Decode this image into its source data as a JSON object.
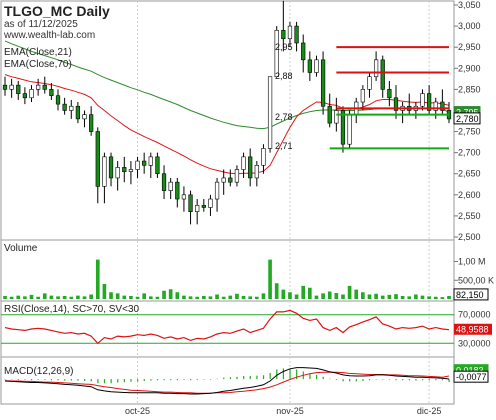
{
  "header": {
    "title": "TLGO_MC Daily",
    "asof": "as of 11/12/2025",
    "site": "www.wealth-lab.com"
  },
  "colors": {
    "background": "#ffffff",
    "bull": "#ffffff",
    "bear": "#1a8a1a",
    "ema21": "#e01818",
    "ema70": "#2e8b2e",
    "hline_red": "#dd1111",
    "hline_green": "#11aa11",
    "volume": "#22aa22",
    "rsi": "#dd1111",
    "macd": "#000000",
    "macd_signal": "#dd1111",
    "macd_hist": "#22aa22",
    "grid": "#cfcfcf",
    "axis_text": "#333333"
  },
  "chart_data": [
    {
      "type": "candlestick",
      "panel": "price",
      "legend": [
        "EMA(Close,21)",
        "EMA(Close,70)"
      ],
      "ylim": [
        2500,
        3050
      ],
      "yticks": [
        "3,050",
        "3,000",
        "2,950",
        "2,900",
        "2,850",
        "2,800",
        "2,750",
        "2,700",
        "2,650",
        "2,600",
        "2,550",
        "2,500"
      ],
      "ytick_values": [
        3050,
        3000,
        2950,
        2900,
        2850,
        2800,
        2750,
        2700,
        2650,
        2600,
        2550,
        2500
      ],
      "xticks": [
        {
          "label": "oct-25",
          "index": 20
        },
        {
          "label": "nov-25",
          "index": 43
        },
        {
          "label": "dic-25",
          "index": 64
        }
      ],
      "last_values": [
        {
          "label": "2,795",
          "color": "#2e8b2e",
          "value": 2795
        },
        {
          "label": "2,780",
          "color": "#ffffff",
          "value": 2780
        }
      ],
      "ohlc": [
        [
          2860,
          2880,
          2835,
          2850
        ],
        [
          2850,
          2875,
          2830,
          2860
        ],
        [
          2860,
          2870,
          2825,
          2840
        ],
        [
          2840,
          2855,
          2815,
          2830
        ],
        [
          2830,
          2860,
          2820,
          2850
        ],
        [
          2850,
          2875,
          2835,
          2860
        ],
        [
          2860,
          2880,
          2840,
          2850
        ],
        [
          2850,
          2865,
          2825,
          2835
        ],
        [
          2835,
          2850,
          2800,
          2815
        ],
        [
          2815,
          2830,
          2790,
          2800
        ],
        [
          2800,
          2825,
          2780,
          2810
        ],
        [
          2810,
          2820,
          2770,
          2780
        ],
        [
          2780,
          2800,
          2760,
          2790
        ],
        [
          2790,
          2810,
          2740,
          2750
        ],
        [
          2750,
          2760,
          2580,
          2620
        ],
        [
          2620,
          2700,
          2580,
          2690
        ],
        [
          2690,
          2700,
          2620,
          2640
        ],
        [
          2640,
          2680,
          2610,
          2665
        ],
        [
          2665,
          2690,
          2630,
          2655
        ],
        [
          2655,
          2680,
          2625,
          2660
        ],
        [
          2660,
          2690,
          2640,
          2680
        ],
        [
          2680,
          2700,
          2650,
          2670
        ],
        [
          2670,
          2700,
          2640,
          2690
        ],
        [
          2690,
          2700,
          2640,
          2650
        ],
        [
          2650,
          2670,
          2590,
          2610
        ],
        [
          2610,
          2640,
          2590,
          2630
        ],
        [
          2630,
          2640,
          2570,
          2590
        ],
        [
          2590,
          2620,
          2560,
          2600
        ],
        [
          2600,
          2610,
          2530,
          2560
        ],
        [
          2560,
          2590,
          2530,
          2575
        ],
        [
          2575,
          2590,
          2560,
          2570
        ],
        [
          2570,
          2600,
          2550,
          2590
        ],
        [
          2590,
          2640,
          2560,
          2630
        ],
        [
          2630,
          2660,
          2600,
          2640
        ],
        [
          2640,
          2660,
          2620,
          2630
        ],
        [
          2630,
          2670,
          2620,
          2660
        ],
        [
          2660,
          2700,
          2640,
          2690
        ],
        [
          2690,
          2710,
          2620,
          2640
        ],
        [
          2640,
          2680,
          2620,
          2670
        ],
        [
          2670,
          2720,
          2650,
          2710
        ],
        [
          2710,
          2880,
          2700,
          2880
        ],
        [
          2880,
          3000,
          2880,
          2990
        ],
        [
          2990,
          3060,
          2940,
          2970
        ],
        [
          2970,
          3010,
          2950,
          3000
        ],
        [
          3000,
          3010,
          2940,
          2960
        ],
        [
          2960,
          2980,
          2890,
          2920
        ],
        [
          2920,
          2940,
          2870,
          2890
        ],
        [
          2890,
          2930,
          2880,
          2920
        ],
        [
          2920,
          2940,
          2790,
          2810
        ],
        [
          2810,
          2840,
          2760,
          2770
        ],
        [
          2770,
          2830,
          2750,
          2800
        ],
        [
          2800,
          2810,
          2700,
          2720
        ],
        [
          2720,
          2800,
          2710,
          2790
        ],
        [
          2790,
          2830,
          2770,
          2820
        ],
        [
          2820,
          2860,
          2800,
          2850
        ],
        [
          2850,
          2890,
          2830,
          2880
        ],
        [
          2880,
          2940,
          2870,
          2920
        ],
        [
          2920,
          2930,
          2830,
          2850
        ],
        [
          2850,
          2870,
          2810,
          2830
        ],
        [
          2830,
          2860,
          2780,
          2800
        ],
        [
          2800,
          2820,
          2770,
          2810
        ],
        [
          2810,
          2840,
          2790,
          2800
        ],
        [
          2800,
          2820,
          2780,
          2810
        ],
        [
          2810,
          2850,
          2800,
          2840
        ],
        [
          2840,
          2860,
          2790,
          2800
        ],
        [
          2800,
          2830,
          2780,
          2820
        ],
        [
          2820,
          2850,
          2790,
          2800
        ],
        [
          2800,
          2820,
          2770,
          2780
        ]
      ],
      "ema21": [
        2885,
        2880,
        2876,
        2872,
        2868,
        2866,
        2864,
        2861,
        2857,
        2852,
        2848,
        2843,
        2838,
        2830,
        2812,
        2800,
        2787,
        2776,
        2764,
        2754,
        2746,
        2738,
        2731,
        2724,
        2716,
        2708,
        2700,
        2692,
        2683,
        2675,
        2668,
        2662,
        2658,
        2654,
        2651,
        2650,
        2651,
        2651,
        2652,
        2656,
        2670,
        2700,
        2730,
        2760,
        2785,
        2800,
        2810,
        2820,
        2819,
        2814,
        2812,
        2805,
        2803,
        2804,
        2808,
        2814,
        2823,
        2826,
        2826,
        2824,
        2822,
        2820,
        2819,
        2820,
        2818,
        2818,
        2816,
        2812
      ],
      "ema70": [
        2965,
        2958,
        2952,
        2946,
        2940,
        2935,
        2930,
        2925,
        2920,
        2914,
        2909,
        2903,
        2898,
        2893,
        2885,
        2878,
        2872,
        2866,
        2860,
        2854,
        2849,
        2843,
        2838,
        2832,
        2826,
        2820,
        2814,
        2807,
        2800,
        2794,
        2788,
        2782,
        2777,
        2772,
        2768,
        2764,
        2762,
        2760,
        2758,
        2757,
        2760,
        2768,
        2775,
        2782,
        2788,
        2793,
        2797,
        2800,
        2801,
        2801,
        2801,
        2800,
        2800,
        2800,
        2801,
        2802,
        2804,
        2805,
        2805,
        2805,
        2805,
        2805,
        2805,
        2805,
        2805,
        2804,
        2804,
        2795
      ],
      "annotations": [
        {
          "text": "2,95",
          "x": 44,
          "y": 2950
        },
        {
          "text": "2,88",
          "x": 44,
          "y": 2882
        },
        {
          "text": "2,78",
          "x": 44,
          "y": 2785
        },
        {
          "text": "2,71",
          "x": 44,
          "y": 2716
        }
      ],
      "hlines": [
        {
          "y": 2950,
          "x0": 50,
          "x1": 67,
          "color": "red"
        },
        {
          "y": 2890,
          "x0": 50,
          "x1": 67,
          "color": "red"
        },
        {
          "y": 2805,
          "x0": 50,
          "x1": 67,
          "color": "red"
        },
        {
          "y": 2790,
          "x0": 50,
          "x1": 67,
          "color": "green"
        },
        {
          "y": 2710,
          "x0": 49,
          "x1": 67,
          "color": "green"
        }
      ]
    },
    {
      "type": "bar",
      "panel": "volume",
      "title": "Volume",
      "yticks": [
        "1,00 M",
        "500,00 K"
      ],
      "ytick_values": [
        1000000,
        500000
      ],
      "ylim": [
        0,
        1200000
      ],
      "last_label": "82,150",
      "values": [
        80000,
        60000,
        90000,
        70000,
        110000,
        60000,
        150000,
        90000,
        70000,
        80000,
        60000,
        90000,
        70000,
        120000,
        1050000,
        400000,
        180000,
        150000,
        90000,
        80000,
        60000,
        150000,
        70000,
        60000,
        220000,
        260000,
        180000,
        90000,
        70000,
        60000,
        80000,
        70000,
        120000,
        60000,
        90000,
        140000,
        80000,
        70000,
        60000,
        150000,
        1050000,
        420000,
        250000,
        180000,
        120000,
        350000,
        300000,
        90000,
        150000,
        200000,
        160000,
        120000,
        350000,
        250000,
        180000,
        120000,
        140000,
        90000,
        110000,
        130000,
        80000,
        70000,
        120000,
        90000,
        70000,
        60000,
        50000,
        82150
      ]
    },
    {
      "type": "line",
      "panel": "rsi",
      "title": "RSI(Close,14), SC>70, SV<30",
      "yticks": [
        "70,0000",
        "30,0000"
      ],
      "ytick_values": [
        70,
        30
      ],
      "ylim": [
        15,
        85
      ],
      "last_label": "48,9588",
      "values": [
        52,
        50,
        49,
        48,
        50,
        51,
        50,
        48,
        46,
        44,
        45,
        43,
        44,
        40,
        30,
        38,
        36,
        40,
        39,
        40,
        42,
        41,
        43,
        41,
        37,
        39,
        36,
        38,
        34,
        37,
        36,
        39,
        43,
        45,
        44,
        47,
        50,
        45,
        48,
        51,
        64,
        74,
        74,
        76,
        72,
        65,
        62,
        64,
        52,
        48,
        52,
        45,
        53,
        56,
        60,
        63,
        67,
        57,
        54,
        50,
        52,
        51,
        52,
        54,
        50,
        52,
        50,
        48.9588
      ]
    },
    {
      "type": "line",
      "panel": "macd",
      "title": "MACD(12,26,9)",
      "ylim": [
        -0.06,
        0.05
      ],
      "last_labels": [
        {
          "text": "0,0183",
          "color": "#22aa22"
        },
        {
          "text": "-0,0077",
          "color": "#ffffff"
        }
      ],
      "macd": [
        -0.005,
        -0.006,
        -0.007,
        -0.008,
        -0.009,
        -0.009,
        -0.01,
        -0.011,
        -0.012,
        -0.014,
        -0.015,
        -0.016,
        -0.018,
        -0.02,
        -0.028,
        -0.031,
        -0.033,
        -0.034,
        -0.035,
        -0.036,
        -0.036,
        -0.036,
        -0.036,
        -0.036,
        -0.037,
        -0.037,
        -0.038,
        -0.038,
        -0.039,
        -0.039,
        -0.038,
        -0.037,
        -0.035,
        -0.032,
        -0.03,
        -0.027,
        -0.024,
        -0.022,
        -0.019,
        -0.015,
        -0.005,
        0.01,
        0.02,
        0.027,
        0.03,
        0.03,
        0.029,
        0.028,
        0.024,
        0.019,
        0.016,
        0.011,
        0.009,
        0.008,
        0.008,
        0.009,
        0.011,
        0.011,
        0.01,
        0.008,
        0.007,
        0.006,
        0.005,
        0.005,
        0.004,
        0.003,
        0.002,
        0.0003
      ],
      "signal": [
        -0.004,
        -0.005,
        -0.005,
        -0.006,
        -0.006,
        -0.007,
        -0.008,
        -0.008,
        -0.009,
        -0.01,
        -0.011,
        -0.012,
        -0.013,
        -0.014,
        -0.017,
        -0.02,
        -0.022,
        -0.025,
        -0.027,
        -0.029,
        -0.03,
        -0.031,
        -0.032,
        -0.033,
        -0.034,
        -0.034,
        -0.035,
        -0.036,
        -0.036,
        -0.037,
        -0.037,
        -0.037,
        -0.036,
        -0.036,
        -0.035,
        -0.033,
        -0.032,
        -0.03,
        -0.028,
        -0.025,
        -0.021,
        -0.015,
        -0.008,
        -0.001,
        0.005,
        0.01,
        0.014,
        0.017,
        0.018,
        0.018,
        0.018,
        0.017,
        0.015,
        0.014,
        0.013,
        0.012,
        0.012,
        0.012,
        0.011,
        0.011,
        0.01,
        0.009,
        0.009,
        0.008,
        0.007,
        0.006,
        0.005,
        0.008
      ]
    }
  ]
}
